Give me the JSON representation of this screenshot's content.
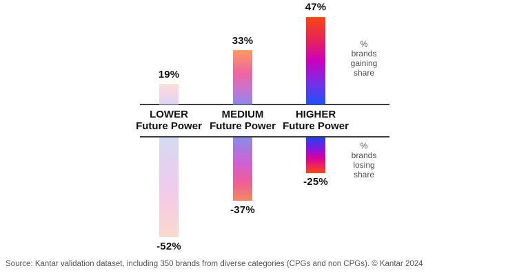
{
  "chart_data": {
    "type": "bar",
    "subtype": "diverging_gradient_columns",
    "title": "",
    "grid": false,
    "categories": [
      {
        "tier": "LOWER",
        "sublabel": "Future Power"
      },
      {
        "tier": "MEDIUM",
        "sublabel": "Future Power"
      },
      {
        "tier": "HIGHER",
        "sublabel": "Future Power"
      }
    ],
    "series": [
      {
        "name": "% brands gaining share",
        "direction": "up",
        "values": [
          19,
          33,
          47
        ],
        "labels": [
          "19%",
          "33%",
          "47%"
        ]
      },
      {
        "name": "% brands losing share",
        "direction": "down",
        "values": [
          -52,
          -37,
          -25
        ],
        "labels": [
          "-52%",
          "-37%",
          "-25%"
        ]
      }
    ],
    "annotations": {
      "gaining": "%\nbrands\ngaining\nshare",
      "losing": "%\nbrands\nlosing\nshare"
    },
    "gradients": {
      "lower_up": [
        "#fcdfd6 0%",
        "#f2d5e7 55%",
        "#d9d6f7 100%"
      ],
      "medium_up": [
        "#fb9a62 0%",
        "#f0659f 42%",
        "#c873cf 72%",
        "#8d87e8 100%"
      ],
      "higher_up": [
        "#f84613 0%",
        "#e6215f 28%",
        "#cb01bd 50%",
        "#7a2ce8 75%",
        "#1c54f7 100%"
      ],
      "lower_down": [
        "#d4daf2 0%",
        "#edccee 45%",
        "#f4cde2 65%",
        "#f9d9cd 100%"
      ],
      "medium_down": [
        "#8b8ce9 0%",
        "#d25fd0 42%",
        "#ee5f94 72%",
        "#f08a62 100%"
      ],
      "higher_down": [
        "#2341f2 0%",
        "#9a10d8 38%",
        "#d9019b 58%",
        "#ee2b50 82%",
        "#f7461a 100%"
      ]
    }
  },
  "source_note": "Source: Kantar validation dataset, including 350 brands from diverse categories (CPGs and non CPGs). © Kantar 2024",
  "colors": {
    "background": "#ffffff",
    "axis_line": "#3c3c3c",
    "value_text": "#111111",
    "category_text": "#111111",
    "annotation_text": "#4e4e4e",
    "source_text": "#545454"
  }
}
